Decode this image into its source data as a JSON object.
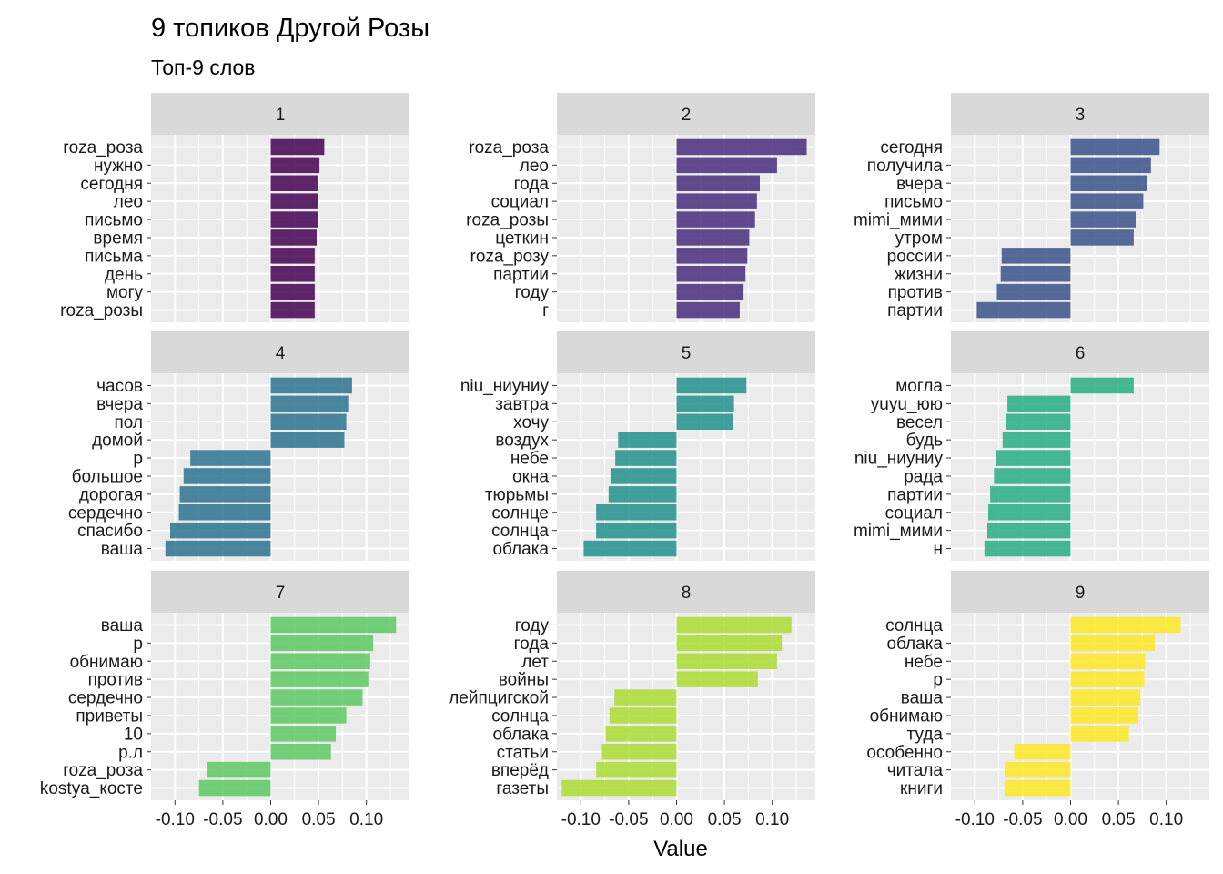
{
  "title": "9 топиков Другой Розы",
  "subtitle": "Топ-9 слов",
  "chart_data": {
    "type": "bar",
    "orientation": "horizontal",
    "faceted": true,
    "facet_layout": "3x3",
    "xlabel": "Value",
    "ylabel": "",
    "xlim": [
      -0.125,
      0.145
    ],
    "x_ticks": [
      "-0.10",
      "-0.05",
      "0.00",
      "0.05",
      "0.10"
    ],
    "x_tick_values": [
      -0.1,
      -0.05,
      0,
      0.05,
      0.1
    ],
    "grid": true,
    "legend": "none",
    "panels": [
      {
        "label": "1",
        "color": "#440154",
        "categories": [
          "roza_роза",
          "нужно",
          "сегодня",
          "лео",
          "письмо",
          "время",
          "письма",
          "день",
          "могу",
          "roza_розы"
        ],
        "values": [
          0.056,
          0.051,
          0.049,
          0.049,
          0.049,
          0.048,
          0.046,
          0.046,
          0.046,
          0.046
        ]
      },
      {
        "label": "2",
        "color": "#472D7B",
        "categories": [
          "roza_роза",
          "лео",
          "года",
          "социал",
          "roza_розы",
          "цеткин",
          "roza_розу",
          "партии",
          "году",
          "г"
        ],
        "values": [
          0.136,
          0.105,
          0.087,
          0.084,
          0.082,
          0.076,
          0.074,
          0.072,
          0.07,
          0.066
        ]
      },
      {
        "label": "3",
        "color": "#3B528B",
        "categories": [
          "сегодня",
          "получила",
          "вчера",
          "письмо",
          "mimi_мими",
          "утром",
          "россии",
          "жизни",
          "против",
          "партии"
        ],
        "values": [
          0.093,
          0.084,
          0.08,
          0.076,
          0.068,
          0.066,
          -0.072,
          -0.073,
          -0.077,
          -0.098
        ]
      },
      {
        "label": "4",
        "color": "#2C728E",
        "categories": [
          "часов",
          "вчера",
          "пол",
          "домой",
          "р",
          "большое",
          "дорогая",
          "сердечно",
          "спасибо",
          "ваша"
        ],
        "values": [
          0.085,
          0.081,
          0.079,
          0.077,
          -0.084,
          -0.091,
          -0.095,
          -0.096,
          -0.105,
          -0.11
        ]
      },
      {
        "label": "5",
        "color": "#21908C",
        "categories": [
          "niu_ниуниу",
          "завтра",
          "хочу",
          "воздух",
          "небе",
          "окна",
          "тюрьмы",
          "солнце",
          "солнца",
          "облака"
        ],
        "values": [
          0.073,
          0.06,
          0.059,
          -0.061,
          -0.064,
          -0.069,
          -0.071,
          -0.084,
          -0.084,
          -0.097
        ]
      },
      {
        "label": "6",
        "color": "#27AD81",
        "categories": [
          "могла",
          "yuyu_юю",
          "весел",
          "будь",
          "niu_ниуниу",
          "рада",
          "партии",
          "социал",
          "mimi_мими",
          "н"
        ],
        "values": [
          0.066,
          -0.066,
          -0.067,
          -0.071,
          -0.078,
          -0.08,
          -0.084,
          -0.086,
          -0.087,
          -0.09
        ]
      },
      {
        "label": "7",
        "color": "#5DC863",
        "categories": [
          "ваша",
          "р",
          "обнимаю",
          "против",
          "сердечно",
          "приветы",
          "10",
          "р.л",
          "roza_роза",
          "kostya_косте"
        ],
        "values": [
          0.131,
          0.107,
          0.104,
          0.102,
          0.096,
          0.079,
          0.068,
          0.063,
          -0.066,
          -0.075
        ]
      },
      {
        "label": "8",
        "color": "#AADC32",
        "categories": [
          "году",
          "года",
          "лет",
          "войны",
          "лейпцигской",
          "солнца",
          "облака",
          "статьи",
          "вперёд",
          "газеты"
        ],
        "values": [
          0.12,
          0.11,
          0.105,
          0.085,
          -0.065,
          -0.07,
          -0.074,
          -0.078,
          -0.084,
          -0.12
        ]
      },
      {
        "label": "9",
        "color": "#FDE725",
        "categories": [
          "солнца",
          "облака",
          "небе",
          "р",
          "ваша",
          "обнимаю",
          "туда",
          "особенно",
          "читала",
          "книги"
        ],
        "values": [
          0.115,
          0.088,
          0.078,
          0.077,
          0.073,
          0.071,
          0.061,
          -0.059,
          -0.069,
          -0.069
        ]
      }
    ]
  }
}
